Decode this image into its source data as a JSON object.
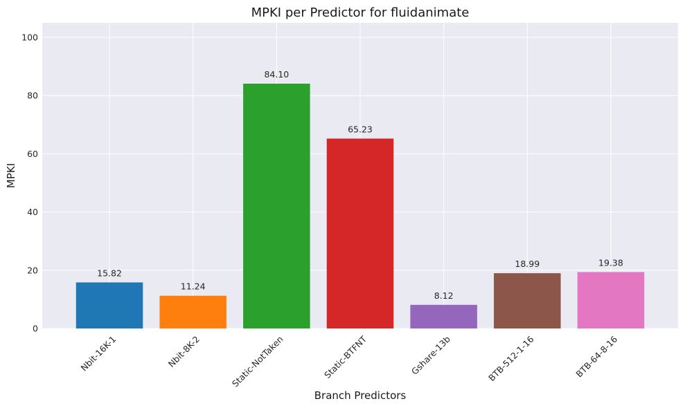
{
  "chart_data": {
    "type": "bar",
    "title": "MPKI per Predictor for fluidanimate",
    "xlabel": "Branch Predictors",
    "ylabel": "MPKI",
    "ylim": [
      0,
      105
    ],
    "yticks": [
      0,
      20,
      40,
      60,
      80,
      100
    ],
    "grid": true,
    "categories": [
      "Nbit-16K-1",
      "Nbit-8K-2",
      "Static-NotTaken",
      "Static-BTFNT",
      "Gshare-13b",
      "BTB-512-1-16",
      "BTB-64-8-16"
    ],
    "values": [
      15.82,
      11.24,
      84.1,
      65.23,
      8.12,
      18.99,
      19.38
    ],
    "value_labels": [
      "15.82",
      "11.24",
      "84.10",
      "65.23",
      "8.12",
      "18.99",
      "19.38"
    ],
    "colors": [
      "#1f77b4",
      "#ff7f0e",
      "#2ca02c",
      "#d62728",
      "#9467bd",
      "#8c564b",
      "#e377c2"
    ],
    "background_color": "#eaeaf2",
    "grid_color": "#ffffff"
  }
}
